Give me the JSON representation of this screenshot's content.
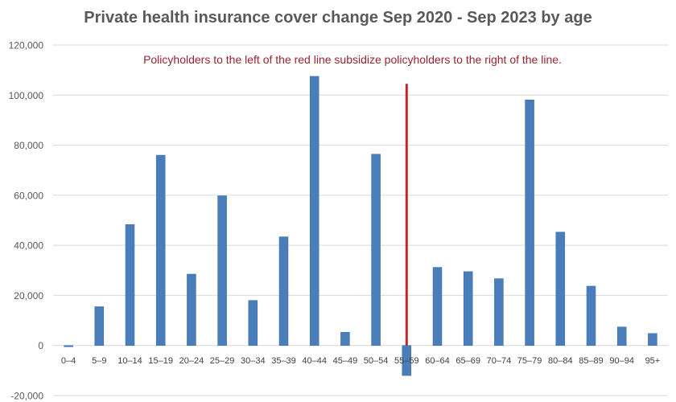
{
  "chart_data": {
    "type": "bar",
    "title": "Private health insurance cover change Sep 2020 - Sep 2023 by age",
    "annotation": "Policyholders to the left of the red line subsidize policyholders to the right of the line.",
    "xlabel": "",
    "ylabel": "",
    "ylim": [
      -20000,
      120000
    ],
    "yticks": [
      -20000,
      0,
      20000,
      40000,
      60000,
      80000,
      100000,
      120000
    ],
    "ytick_labels": [
      "-20,000",
      "0",
      "20,000",
      "40,000",
      "60,000",
      "80,000",
      "100,000",
      "120,000"
    ],
    "categories": [
      "0–4",
      "5–9",
      "10–14",
      "15–19",
      "20–24",
      "25–29",
      "30–34",
      "35–39",
      "40–44",
      "45–49",
      "50–54",
      "55–59",
      "60–64",
      "65–69",
      "70–74",
      "75–79",
      "80–84",
      "85–89",
      "90–94",
      "95+"
    ],
    "values": [
      -500,
      15500,
      48300,
      76000,
      28500,
      59800,
      18000,
      43400,
      107500,
      5300,
      76400,
      -12000,
      31200,
      29500,
      26700,
      98100,
      45300,
      23700,
      7400,
      4800
    ],
    "reference_line": {
      "category": "55–59",
      "from": 0,
      "to": 104500,
      "color": "#c0262d"
    },
    "grid": true,
    "legend": "none",
    "bar_color": "#4a7ebb",
    "annotation_color": "#9b2230",
    "title_color": "#595959"
  }
}
